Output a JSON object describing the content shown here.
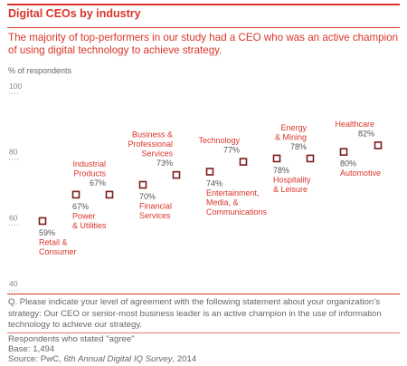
{
  "title": "Digital CEOs by industry",
  "subtitle": "The majority of top-performers in our study had a CEO who was an active champion of using digital technology to achieve strategy.",
  "question": "Q. Please indicate your level of agreement with the following statement about your organization’s strategy: Our CEO or senior-most business leader is an active champion in the use of information technology to achieve our strategy.",
  "respondents_note": "Respondents who stated \"agree\"",
  "base": "Base: 1,494",
  "source_prefix": "Source: PwC, ",
  "source_italic": "6th Annual Digital IQ Survey",
  "source_suffix": ", 2014",
  "colors": {
    "accent": "#d9352a",
    "marker": "#7b1c1c",
    "text": "#555555"
  },
  "chart_data": {
    "type": "scatter",
    "ylabel": "% of respondents",
    "ylim": [
      40,
      100
    ],
    "yticks": [
      "100",
      "80",
      "60",
      "40"
    ],
    "points": [
      {
        "name": [
          "Retail &",
          "Consumer"
        ],
        "value": 59,
        "label": "59%"
      },
      {
        "name": [
          "Power",
          "& Utilities"
        ],
        "value": 67,
        "label": "67%"
      },
      {
        "name": [
          "Industrial",
          "Products"
        ],
        "value": 67,
        "label": "67%"
      },
      {
        "name": [
          "Financial",
          "Services"
        ],
        "value": 70,
        "label": "70%"
      },
      {
        "name": [
          "Business &",
          "Professional",
          "Services"
        ],
        "value": 73,
        "label": "73%"
      },
      {
        "name": [
          "Entertainment,",
          "Media, &",
          "Communications"
        ],
        "value": 74,
        "label": "74%"
      },
      {
        "name": [
          "Technology"
        ],
        "value": 77,
        "label": "77%"
      },
      {
        "name": [
          "Hospitality",
          "& Leisure"
        ],
        "value": 78,
        "label": "78%"
      },
      {
        "name": [
          "Energy",
          "& Mining"
        ],
        "value": 78,
        "label": "78%"
      },
      {
        "name": [
          "Automotive"
        ],
        "value": 80,
        "label": "80%"
      },
      {
        "name": [
          "Healthcare"
        ],
        "value": 82,
        "label": "82%"
      }
    ]
  }
}
